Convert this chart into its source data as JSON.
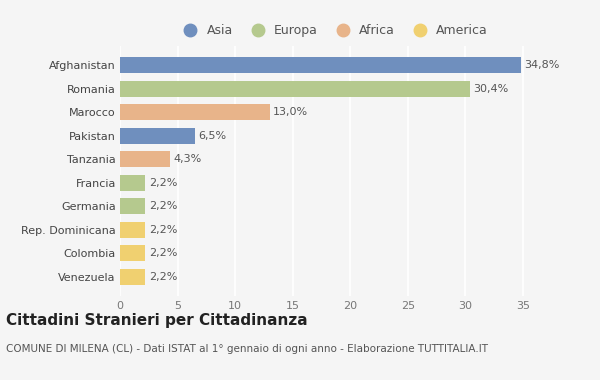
{
  "categories": [
    "Afghanistan",
    "Romania",
    "Marocco",
    "Pakistan",
    "Tanzania",
    "Francia",
    "Germania",
    "Rep. Dominicana",
    "Colombia",
    "Venezuela"
  ],
  "values": [
    34.8,
    30.4,
    13.0,
    6.5,
    4.3,
    2.2,
    2.2,
    2.2,
    2.2,
    2.2
  ],
  "labels": [
    "34,8%",
    "30,4%",
    "13,0%",
    "6,5%",
    "4,3%",
    "2,2%",
    "2,2%",
    "2,2%",
    "2,2%",
    "2,2%"
  ],
  "colors": [
    "#6f8fbe",
    "#b5c98e",
    "#e8b48a",
    "#6f8fbe",
    "#e8b48a",
    "#b5c98e",
    "#b5c98e",
    "#f0d070",
    "#f0d070",
    "#f0d070"
  ],
  "legend": [
    {
      "label": "Asia",
      "color": "#6f8fbe"
    },
    {
      "label": "Europa",
      "color": "#b5c98e"
    },
    {
      "label": "Africa",
      "color": "#e8b48a"
    },
    {
      "label": "America",
      "color": "#f0d070"
    }
  ],
  "xlim": [
    0,
    37
  ],
  "xticks": [
    0,
    5,
    10,
    15,
    20,
    25,
    30,
    35
  ],
  "title": "Cittadini Stranieri per Cittadinanza",
  "subtitle": "COMUNE DI MILENA (CL) - Dati ISTAT al 1° gennaio di ogni anno - Elaborazione TUTTITALIA.IT",
  "bg_color": "#f5f5f5",
  "plot_bg_color": "#f5f5f5",
  "grid_color": "#ffffff",
  "bar_height": 0.68,
  "title_fontsize": 11,
  "subtitle_fontsize": 7.5,
  "label_fontsize": 8,
  "tick_fontsize": 8,
  "legend_fontsize": 9,
  "ytick_fontsize": 8
}
